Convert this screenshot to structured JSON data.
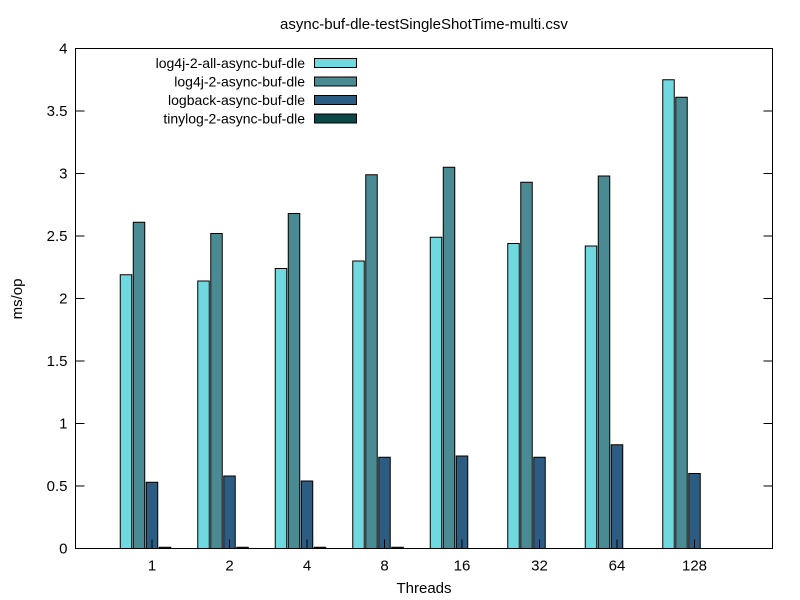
{
  "chart_data": {
    "type": "bar",
    "title": "async-buf-dle-testSingleShotTime-multi.csv",
    "xlabel": "Threads",
    "ylabel": "ms/op",
    "categories": [
      "1",
      "2",
      "4",
      "8",
      "16",
      "32",
      "64",
      "128"
    ],
    "ylim": [
      0,
      4
    ],
    "yticks": [
      "0",
      "0.5",
      "1",
      "1.5",
      "2",
      "2.5",
      "3",
      "3.5",
      "4"
    ],
    "grid": false,
    "legend_position": "top-left",
    "series": [
      {
        "name": "log4j-2-all-async-buf-dle",
        "color": "#6fd9df",
        "values": [
          2.19,
          2.14,
          2.24,
          2.3,
          2.49,
          2.44,
          2.42,
          3.75
        ]
      },
      {
        "name": "log4j-2-async-buf-dle",
        "color": "#4a8a92",
        "values": [
          2.61,
          2.52,
          2.68,
          2.99,
          3.05,
          2.93,
          2.98,
          3.61
        ]
      },
      {
        "name": "logback-async-buf-dle",
        "color": "#2c5c82",
        "values": [
          0.53,
          0.58,
          0.54,
          0.73,
          0.74,
          0.73,
          0.83,
          0.6
        ]
      },
      {
        "name": "tinylog-2-async-buf-dle",
        "color": "#0a4848",
        "values": [
          0.01,
          0.01,
          0.01,
          0.01,
          null,
          null,
          null,
          null
        ]
      }
    ]
  }
}
